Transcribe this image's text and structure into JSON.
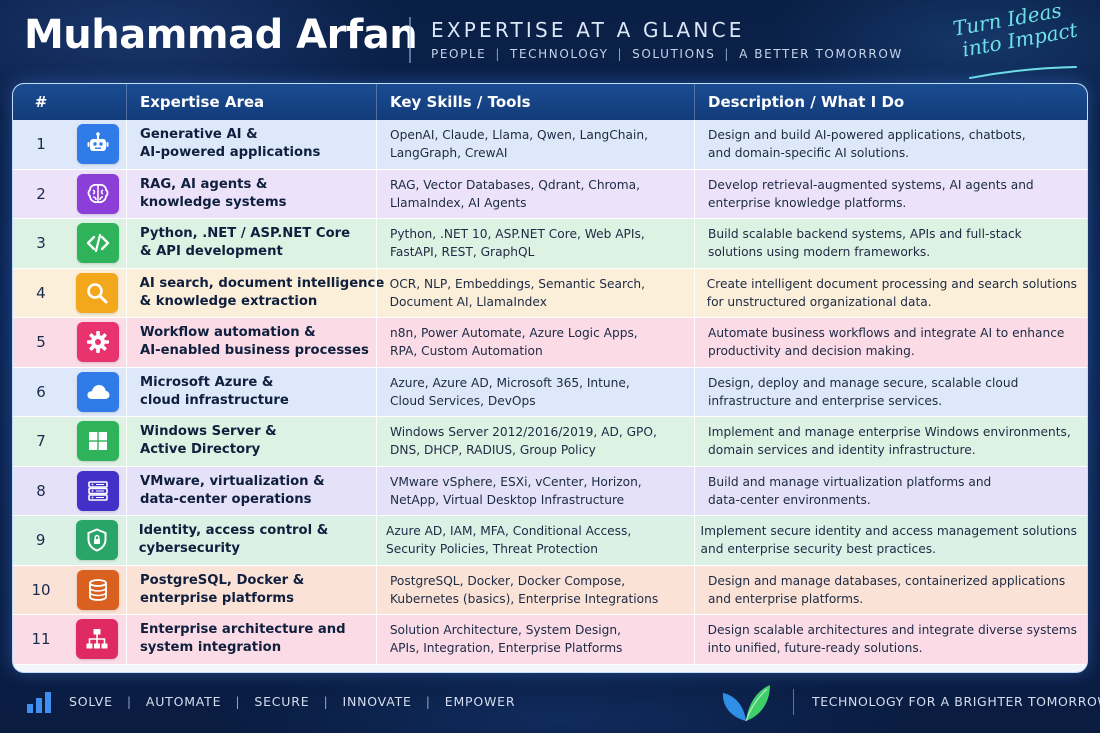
{
  "header": {
    "name": "Muhammad Arfan",
    "title": "EXPERTISE AT A GLANCE",
    "subtitles": [
      "PEOPLE",
      "TECHNOLOGY",
      "SOLUTIONS",
      "A BETTER TOMORROW"
    ],
    "tagline_line1": "Turn Ideas",
    "tagline_line2": "into Impact"
  },
  "table": {
    "columns": [
      "#",
      "Expertise Area",
      "Key Skills / Tools",
      "Description / What I Do"
    ],
    "rows": [
      {
        "num": "1",
        "icon": "robot-icon",
        "icon_color": "#2f7be8",
        "bg": "#dde9fb",
        "area": [
          "Generative AI &",
          "AI-powered applications"
        ],
        "skills": [
          "OpenAI, Claude, Llama, Qwen, LangChain,",
          "LangGraph, CrewAI"
        ],
        "desc": [
          "Design and build AI-powered applications, chatbots,",
          "and domain-specific AI solutions."
        ]
      },
      {
        "num": "2",
        "icon": "brain-icon",
        "icon_color": "#8b3fd8",
        "bg": "#ece3fa",
        "area": [
          "RAG, AI agents &",
          "knowledge systems"
        ],
        "skills": [
          "RAG, Vector Databases, Qdrant, Chroma,",
          "LlamaIndex, AI Agents"
        ],
        "desc": [
          "Develop retrieval-augmented systems, AI agents and",
          "enterprise knowledge platforms."
        ]
      },
      {
        "num": "3",
        "icon": "code-icon",
        "icon_color": "#2fb35a",
        "bg": "#def2e4",
        "area": [
          "Python, .NET / ASP.NET Core",
          "& API development"
        ],
        "skills": [
          "Python, .NET 10, ASP.NET Core, Web APIs,",
          "FastAPI, REST, GraphQL"
        ],
        "desc": [
          "Build scalable backend systems, APIs and full-stack",
          "solutions using modern frameworks."
        ]
      },
      {
        "num": "4",
        "icon": "search-icon",
        "icon_color": "#f3a81b",
        "bg": "#fbefd9",
        "area": [
          "AI search, document intelligence",
          "& knowledge extraction"
        ],
        "skills": [
          "OCR, NLP, Embeddings, Semantic Search,",
          "Document AI, LlamaIndex"
        ],
        "desc": [
          "Create intelligent document processing and search solutions",
          "for unstructured organizational data."
        ]
      },
      {
        "num": "5",
        "icon": "gear-icon",
        "icon_color": "#e8336f",
        "bg": "#fadbe6",
        "area": [
          "Workflow automation &",
          "AI-enabled business processes"
        ],
        "skills": [
          "n8n, Power Automate, Azure Logic Apps,",
          "RPA, Custom Automation"
        ],
        "desc": [
          "Automate business workflows and integrate AI to enhance",
          "productivity and decision making."
        ]
      },
      {
        "num": "6",
        "icon": "cloud-icon",
        "icon_color": "#2f7be8",
        "bg": "#dde9fb",
        "area": [
          "Microsoft Azure &",
          "cloud infrastructure"
        ],
        "skills": [
          "Azure, Azure AD, Microsoft 365, Intune,",
          "Cloud Services, DevOps"
        ],
        "desc": [
          "Design, deploy and manage secure, scalable cloud",
          "infrastructure and enterprise services."
        ]
      },
      {
        "num": "7",
        "icon": "windows-icon",
        "icon_color": "#2fb35a",
        "bg": "#def2e4",
        "area": [
          "Windows Server &",
          "Active Directory"
        ],
        "skills": [
          "Windows Server 2012/2016/2019, AD, GPO,",
          "DNS, DHCP, RADIUS, Group Policy"
        ],
        "desc": [
          "Implement and manage enterprise Windows environments,",
          "domain services and identity infrastructure."
        ]
      },
      {
        "num": "8",
        "icon": "server-icon",
        "icon_color": "#4330c8",
        "bg": "#e4e1f8",
        "area": [
          "VMware, virtualization &",
          "data-center operations"
        ],
        "skills": [
          "VMware vSphere, ESXi, vCenter, Horizon,",
          "NetApp, Virtual Desktop Infrastructure"
        ],
        "desc": [
          "Build and manage virtualization platforms and",
          "data-center environments."
        ]
      },
      {
        "num": "9",
        "icon": "shield-lock-icon",
        "icon_color": "#2aa56a",
        "bg": "#dcf1e6",
        "area": [
          "Identity, access control &",
          "cybersecurity"
        ],
        "skills": [
          "Azure AD, IAM, MFA, Conditional Access,",
          "Security Policies, Threat Protection"
        ],
        "desc": [
          "Implement secure identity and access management solutions",
          "and enterprise security best practices."
        ]
      },
      {
        "num": "10",
        "icon": "database-icon",
        "icon_color": "#d9601e",
        "bg": "#fbe2d6",
        "area": [
          "PostgreSQL, Docker &",
          "enterprise platforms"
        ],
        "skills": [
          "PostgreSQL, Docker, Docker Compose,",
          "Kubernetes (basics), Enterprise Integrations"
        ],
        "desc": [
          "Design and manage databases, containerized applications",
          "and enterprise platforms."
        ]
      },
      {
        "num": "11",
        "icon": "hierarchy-icon",
        "icon_color": "#e02a63",
        "bg": "#fadbe6",
        "area": [
          "Enterprise architecture and",
          "system integration"
        ],
        "skills": [
          "Solution Architecture, System Design,",
          "APIs, Integration, Enterprise Platforms"
        ],
        "desc": [
          "Design scalable architectures and integrate diverse systems",
          "into unified, future-ready solutions."
        ]
      }
    ]
  },
  "footer": {
    "words": [
      "SOLVE",
      "AUTOMATE",
      "SECURE",
      "INNOVATE",
      "EMPOWER"
    ],
    "tagline": "TECHNOLOGY FOR A BRIGHTER TOMORROW"
  }
}
